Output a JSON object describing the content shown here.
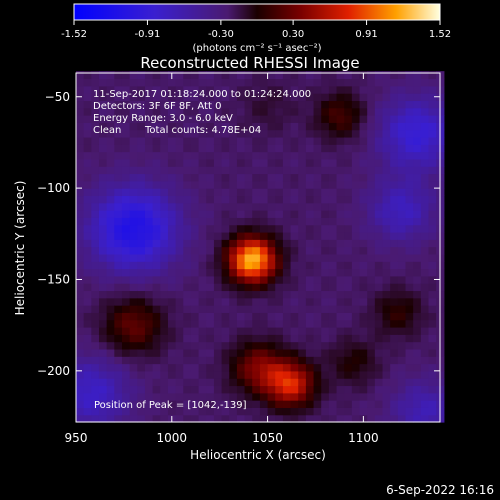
{
  "chart_data": {
    "type": "heatmap",
    "title": "Reconstructed RHESSI Image",
    "xlabel": "Heliocentric X (arcsec)",
    "ylabel": "Heliocentric Y (arcsec)",
    "xlim": [
      950,
      1140
    ],
    "ylim": [
      -228,
      -37
    ],
    "x_ticks": [
      950,
      1000,
      1050,
      1100
    ],
    "y_ticks": [
      -50,
      -100,
      -150,
      -200
    ],
    "colorbar": {
      "min": -1.52,
      "max": 1.52,
      "ticks": [
        "-1.52",
        "-0.91",
        "-0.30",
        "0.30",
        "0.91",
        "1.52"
      ],
      "units_label": "(photons cm⁻² s⁻¹ asec⁻²)"
    },
    "annotations": {
      "time_range": "11-Sep-2017 01:18:24.000 to 01:24:24.000",
      "detectors": "Detectors: 3F 6F 8F, Att 0",
      "energy_range": "Energy Range: 3.0 - 6.0 keV",
      "clean_label": "Clean",
      "total_counts": "Total counts: 4.78E+04",
      "peak_position": "Position of Peak = [1042,-139]"
    },
    "sources": [
      {
        "x": 1042,
        "y": -139,
        "value": 1.52,
        "sigma": 9
      },
      {
        "x": 1062,
        "y": -207,
        "value": 1.0,
        "sigma": 9
      },
      {
        "x": 1045,
        "y": -198,
        "value": 0.65,
        "sigma": 10
      },
      {
        "x": 980,
        "y": -175,
        "value": 0.55,
        "sigma": 11
      },
      {
        "x": 1088,
        "y": -60,
        "value": 0.45,
        "sigma": 9
      },
      {
        "x": 1118,
        "y": -168,
        "value": 0.35,
        "sigma": 9
      },
      {
        "x": 1095,
        "y": -195,
        "value": 0.3,
        "sigma": 9
      },
      {
        "x": 980,
        "y": -122,
        "value": -0.85,
        "sigma": 16
      },
      {
        "x": 1128,
        "y": -70,
        "value": -0.6,
        "sigma": 14
      },
      {
        "x": 1120,
        "y": -112,
        "value": -0.45,
        "sigma": 12
      },
      {
        "x": 958,
        "y": -212,
        "value": -0.5,
        "sigma": 14
      },
      {
        "x": 1132,
        "y": -222,
        "value": -0.4,
        "sigma": 12
      },
      {
        "x": 1050,
        "y": -55,
        "value": 0.15,
        "sigma": 10
      }
    ]
  },
  "footer": {
    "date": "6-Sep-2022 16:16"
  }
}
